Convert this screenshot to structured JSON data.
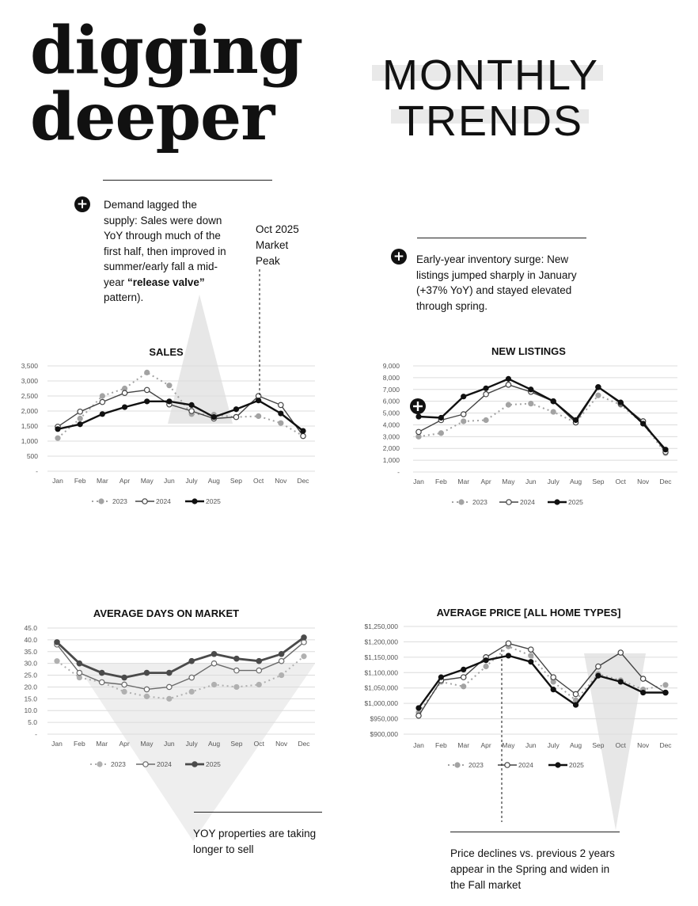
{
  "header": {
    "title_line1": "digging",
    "title_line2": "deeper",
    "section_line1": "MONTHLY",
    "section_line2": "TRENDS"
  },
  "notes": {
    "demand_text_1": "Demand lagged the supply: Sales were down YoY through much of the first half, then improved in summer/early fall a mid-year ",
    "demand_bold": "“release valve”",
    "demand_text_2": " pattern).",
    "inventory_text": "Early-year inventory surge: New listings jumped sharply in January (+37% YoY) and stayed elevated through spring.",
    "peak_line1": "Oct 2025",
    "peak_line2": "Market",
    "peak_line3": "Peak",
    "dom_text": "YOY properties are taking longer to sell",
    "price_text": "Price declines vs. previous 2 years appear in the Spring and widen in the Fall market",
    "plus_symbol": "+"
  },
  "chart_data": [
    {
      "type": "line",
      "title": "SALES",
      "categories": [
        "Jan",
        "Feb",
        "Mar",
        "Apr",
        "May",
        "Jun",
        "July",
        "Aug",
        "Sep",
        "Oct",
        "Nov",
        "Dec"
      ],
      "ylim": [
        0,
        3500
      ],
      "yticks": [
        "-",
        "500",
        "1,000",
        "1,500",
        "2,000",
        "2,500",
        "3,000",
        "3,500"
      ],
      "grid": true,
      "legend": "bottom",
      "series": [
        {
          "name": "2023",
          "values": [
            1100,
            1750,
            2500,
            2750,
            3280,
            2850,
            1900,
            1880,
            1800,
            1830,
            1600,
            1170
          ]
        },
        {
          "name": "2024",
          "values": [
            1480,
            1980,
            2300,
            2600,
            2700,
            2220,
            2000,
            1750,
            1800,
            2500,
            2200,
            1170
          ]
        },
        {
          "name": "2025",
          "values": [
            1400,
            1560,
            1900,
            2130,
            2320,
            2320,
            2200,
            1800,
            2060,
            2350,
            1920,
            1340
          ]
        }
      ]
    },
    {
      "type": "line",
      "title": "NEW LISTINGS",
      "categories": [
        "Jan",
        "Feb",
        "Mar",
        "Apr",
        "May",
        "Jun",
        "July",
        "Aug",
        "Sep",
        "Oct",
        "Nov",
        "Dec"
      ],
      "ylim": [
        0,
        9000
      ],
      "yticks": [
        "-",
        "1,000",
        "2,000",
        "3,000",
        "4,000",
        "5,000",
        "6,000",
        "7,000",
        "8,000",
        "9,000"
      ],
      "grid": true,
      "legend": "bottom",
      "series": [
        {
          "name": "2023",
          "values": [
            3000,
            3300,
            4300,
            4400,
            5700,
            5800,
            5100,
            4200,
            6500,
            5700,
            4100,
            1600
          ]
        },
        {
          "name": "2024",
          "values": [
            3400,
            4400,
            4900,
            6600,
            7400,
            6800,
            6000,
            4200,
            7200,
            5800,
            4300,
            1700
          ]
        },
        {
          "name": "2025",
          "values": [
            4700,
            4600,
            6400,
            7100,
            7900,
            7000,
            6000,
            4400,
            7200,
            5900,
            4100,
            1900
          ]
        }
      ]
    },
    {
      "type": "line",
      "title": "AVERAGE DAYS ON MARKET",
      "categories": [
        "Jan",
        "Feb",
        "Mar",
        "Apr",
        "May",
        "Jun",
        "July",
        "Aug",
        "Sep",
        "Oct",
        "Nov",
        "Dec"
      ],
      "ylim": [
        0,
        45
      ],
      "yticks": [
        "-",
        "5.0",
        "10.0",
        "15.0",
        "20.0",
        "25.0",
        "30.0",
        "35.0",
        "40.0",
        "45.0"
      ],
      "grid": true,
      "legend": "bottom",
      "series": [
        {
          "name": "2023",
          "values": [
            31,
            24,
            22,
            18,
            16,
            15,
            18,
            21,
            20,
            21,
            25,
            33
          ]
        },
        {
          "name": "2024",
          "values": [
            38,
            26,
            22,
            21,
            19,
            20,
            24,
            30,
            27,
            27,
            31,
            39
          ]
        },
        {
          "name": "2025",
          "values": [
            39,
            30,
            26,
            24,
            26,
            26,
            31,
            34,
            32,
            31,
            34,
            41
          ]
        }
      ]
    },
    {
      "type": "line",
      "title": "AVERAGE PRICE [ALL HOME TYPES]",
      "categories": [
        "Jan",
        "Feb",
        "Mar",
        "Apr",
        "May",
        "Jun",
        "July",
        "Aug",
        "Sep",
        "Oct",
        "Nov",
        "Dec"
      ],
      "ylim": [
        900000,
        1250000
      ],
      "yticks": [
        "$900,000",
        "$950,000",
        "$1,000,000",
        "$1,050,000",
        "$1,100,000",
        "$1,150,000",
        "$1,200,000",
        "$1,250,000"
      ],
      "grid": true,
      "legend": "bottom",
      "series": [
        {
          "name": "2023",
          "values": [
            970000,
            1070000,
            1055000,
            1120000,
            1185000,
            1155000,
            1070000,
            1010000,
            1095000,
            1075000,
            1045000,
            1060000
          ]
        },
        {
          "name": "2024",
          "values": [
            960000,
            1075000,
            1085000,
            1150000,
            1195000,
            1175000,
            1085000,
            1030000,
            1120000,
            1165000,
            1080000,
            1035000
          ]
        },
        {
          "name": "2025",
          "values": [
            985000,
            1085000,
            1110000,
            1140000,
            1155000,
            1135000,
            1045000,
            995000,
            1090000,
            1070000,
            1035000,
            1035000
          ]
        }
      ]
    }
  ]
}
